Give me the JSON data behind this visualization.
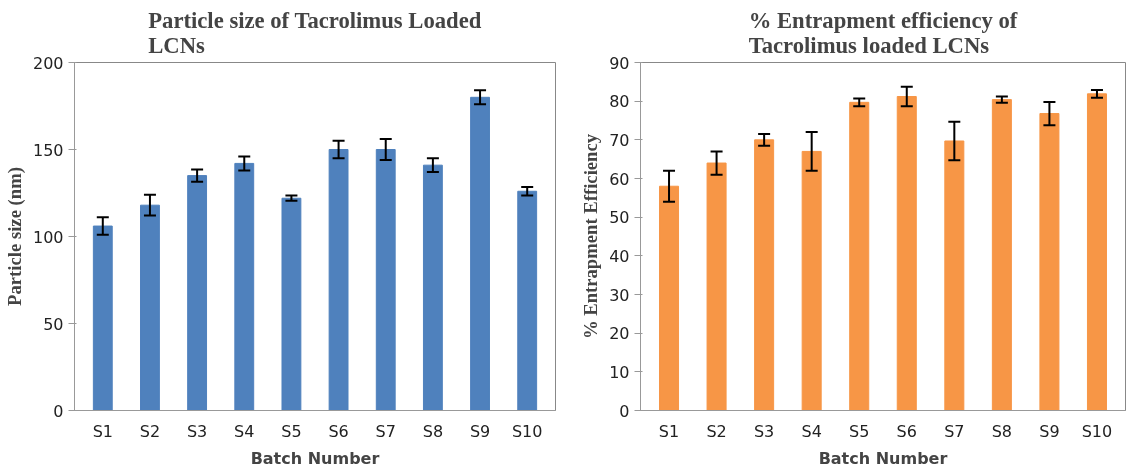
{
  "chart_data": [
    {
      "type": "bar",
      "title": "Particle size of Tacrolimus Loaded\nLCNs",
      "xlabel": "Batch Number",
      "ylabel": "Particle size (nm)",
      "categories": [
        "S1",
        "S2",
        "S3",
        "S4",
        "S5",
        "S6",
        "S7",
        "S8",
        "S9",
        "S10"
      ],
      "series": [
        {
          "color": "#4f81bd",
          "values": [
            106,
            118,
            135,
            142,
            122,
            150,
            150,
            141,
            180,
            126
          ],
          "errors": [
            5,
            6,
            3.5,
            4,
            1.5,
            5,
            6,
            4,
            4,
            2.5
          ]
        }
      ],
      "ylim": [
        0,
        200
      ],
      "yticks": [
        0,
        50,
        100,
        150,
        200
      ],
      "grid": false
    },
    {
      "type": "bar",
      "title": "% Entrapment efficiency of\nTacrolimus loaded LCNs",
      "xlabel": "Batch Number",
      "ylabel": "% Entrapment Efficiency",
      "categories": [
        "S1",
        "S2",
        "S3",
        "S4",
        "S5",
        "S6",
        "S7",
        "S8",
        "S9",
        "S10"
      ],
      "series": [
        {
          "color": "#f79646",
          "values": [
            58,
            64,
            70,
            67,
            79.7,
            81.2,
            69.7,
            80.4,
            76.8,
            81.9
          ],
          "errors": [
            4,
            3,
            1.5,
            5,
            1,
            2.5,
            5,
            0.8,
            3,
            1
          ]
        }
      ],
      "ylim": [
        0,
        90
      ],
      "yticks": [
        0,
        10,
        20,
        30,
        40,
        50,
        60,
        70,
        80,
        90
      ],
      "grid": false
    }
  ]
}
